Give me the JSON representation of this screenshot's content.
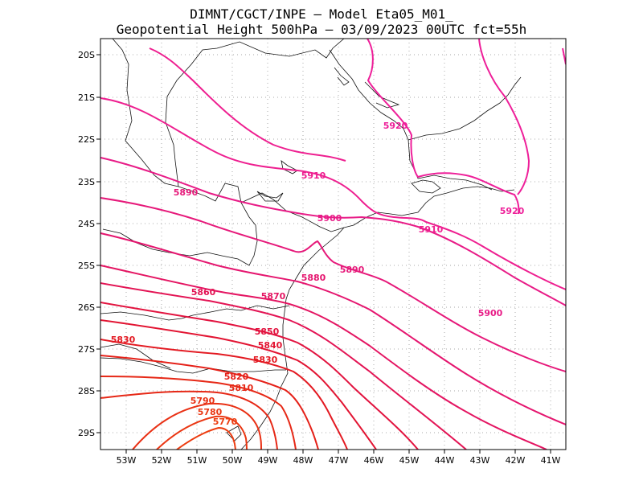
{
  "title": {
    "line1": "DIMNT/CGCT/INPE –  Model Eta05_M01_",
    "line2": "Geopotential Height 500hPa –  03/09/2023 00UTC fct=55h"
  },
  "map": {
    "lon_range": [
      -53.6,
      -40.5
    ],
    "lat_range": [
      -29.4,
      -19.7
    ],
    "lon_ticks": [
      "53W",
      "52W",
      "51W",
      "50W",
      "49W",
      "48W",
      "47W",
      "46W",
      "45W",
      "44W",
      "43W",
      "42W",
      "41W"
    ],
    "lat_ticks": [
      "20S",
      "21S",
      "22S",
      "23S",
      "24S",
      "25S",
      "26S",
      "27S",
      "28S",
      "29S"
    ]
  },
  "contours": {
    "colors": {
      "c5920": "#ee1f99",
      "c5910": "#ee1f90",
      "c5900": "#e81c87",
      "c5890": "#e6197a",
      "c5880": "#e5166f",
      "c5870": "#e41562",
      "c5860": "#e31454",
      "c5850": "#e2133f",
      "c5840": "#e21432",
      "c5830": "#e31a22",
      "c5820": "#e52018",
      "c5810": "#e62816",
      "c5790": "#e93014",
      "c5780": "#ea3612",
      "c5770": "#ec3c10"
    },
    "labels": [
      {
        "id": "l5920a",
        "text": "5920"
      },
      {
        "id": "l5920b",
        "text": "5920"
      },
      {
        "id": "l5910a",
        "text": "5910"
      },
      {
        "id": "l5910b",
        "text": "5910"
      },
      {
        "id": "l5900a",
        "text": "5900"
      },
      {
        "id": "l5900b",
        "text": "5900"
      },
      {
        "id": "l5890a",
        "text": "5890"
      },
      {
        "id": "l5890b",
        "text": "5890"
      },
      {
        "id": "l5880",
        "text": "5880"
      },
      {
        "id": "l5870",
        "text": "5870"
      },
      {
        "id": "l5860",
        "text": "5860"
      },
      {
        "id": "l5850",
        "text": "5850"
      },
      {
        "id": "l5840",
        "text": "5840"
      },
      {
        "id": "l5830a",
        "text": "5830"
      },
      {
        "id": "l5830b",
        "text": "5830"
      },
      {
        "id": "l5820",
        "text": "5820"
      },
      {
        "id": "l5810",
        "text": "5810"
      },
      {
        "id": "l5790",
        "text": "5790"
      },
      {
        "id": "l5780",
        "text": "5780"
      },
      {
        "id": "l5770",
        "text": "5770"
      }
    ]
  }
}
